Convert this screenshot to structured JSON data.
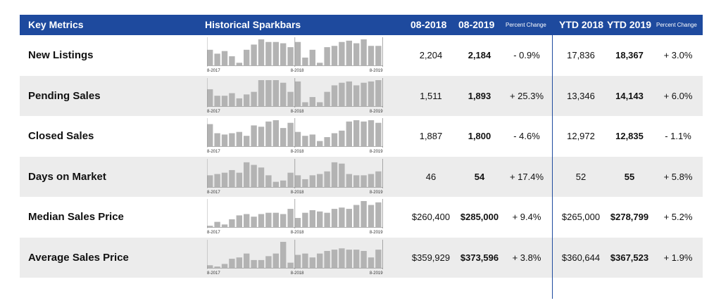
{
  "header": {
    "key_metrics": "Key Metrics",
    "sparkbars": "Historical Sparkbars",
    "col_0818": "08-2018",
    "col_0819": "08-2019",
    "pct_change": "Percent Change",
    "ytd_2018": "YTD 2018",
    "ytd_2019": "YTD 2019",
    "ytd_pct_change": "Percent Change"
  },
  "colors": {
    "header_bg": "#1e4a9e",
    "bar": "#b3b3b3",
    "row_alt": "#ececec"
  },
  "rows": [
    {
      "metric": "New Listings",
      "v2018": "2,204",
      "v2019": "2,184",
      "pct": "- 0.9%",
      "ytd2018": "17,836",
      "ytd2019": "18,367",
      "ytdpct": "+ 3.0%"
    },
    {
      "metric": "Pending Sales",
      "v2018": "1,511",
      "v2019": "1,893",
      "pct": "+ 25.3%",
      "ytd2018": "13,346",
      "ytd2019": "14,143",
      "ytdpct": "+ 6.0%"
    },
    {
      "metric": "Closed Sales",
      "v2018": "1,887",
      "v2019": "1,800",
      "pct": "- 4.6%",
      "ytd2018": "12,972",
      "ytd2019": "12,835",
      "ytdpct": "- 1.1%"
    },
    {
      "metric": "Days on Market",
      "v2018": "46",
      "v2019": "54",
      "pct": "+ 17.4%",
      "ytd2018": "52",
      "ytd2019": "55",
      "ytdpct": "+ 5.8%"
    },
    {
      "metric": "Median Sales Price",
      "v2018": "$260,400",
      "v2019": "$285,000",
      "pct": "+ 9.4%",
      "ytd2018": "$265,000",
      "ytd2019": "$278,799",
      "ytdpct": "+ 5.2%"
    },
    {
      "metric": "Average Sales Price",
      "v2018": "$359,929",
      "v2019": "$373,596",
      "pct": "+ 3.8%",
      "ytd2018": "$360,644",
      "ytd2019": "$367,523",
      "ytdpct": "+ 1.9%"
    }
  ],
  "chart_data": {
    "type": "bar",
    "tick_labels": [
      "8-2017",
      "8-2018",
      "8-2019"
    ],
    "series": [
      {
        "values": [
          0.6,
          0.45,
          0.55,
          0.35,
          0.1,
          0.6,
          0.8,
          1.0,
          0.9,
          0.9,
          0.85,
          0.7,
          0.9,
          0.3,
          0.6,
          0.1,
          0.7,
          0.75,
          0.9,
          0.95,
          0.85,
          1.0,
          0.75,
          0.75
        ]
      },
      {
        "values": [
          0.65,
          0.4,
          0.4,
          0.5,
          0.3,
          0.45,
          0.55,
          1.0,
          1.0,
          1.0,
          0.9,
          0.55,
          0.95,
          0.15,
          0.35,
          0.15,
          0.55,
          0.8,
          0.9,
          0.95,
          0.8,
          0.9,
          0.95,
          1.0
        ]
      },
      {
        "values": [
          0.85,
          0.5,
          0.45,
          0.5,
          0.55,
          0.4,
          0.8,
          0.75,
          0.95,
          1.0,
          0.7,
          0.9,
          0.55,
          0.4,
          0.45,
          0.2,
          0.35,
          0.5,
          0.6,
          0.95,
          1.0,
          0.95,
          1.0,
          0.9
        ]
      },
      {
        "values": [
          0.45,
          0.5,
          0.55,
          0.65,
          0.55,
          0.95,
          0.85,
          0.75,
          0.45,
          0.2,
          0.25,
          0.55,
          0.45,
          0.3,
          0.45,
          0.5,
          0.6,
          0.95,
          0.9,
          0.5,
          0.45,
          0.45,
          0.5,
          0.6
        ]
      },
      {
        "values": [
          0.05,
          0.2,
          0.1,
          0.3,
          0.45,
          0.5,
          0.4,
          0.5,
          0.55,
          0.55,
          0.5,
          0.7,
          0.35,
          0.55,
          0.65,
          0.6,
          0.55,
          0.7,
          0.75,
          0.7,
          0.85,
          1.0,
          0.85,
          0.95
        ]
      },
      {
        "values": [
          0.1,
          0.05,
          0.15,
          0.35,
          0.4,
          0.55,
          0.3,
          0.3,
          0.45,
          0.55,
          1.0,
          0.2,
          0.5,
          0.55,
          0.4,
          0.55,
          0.65,
          0.7,
          0.75,
          0.7,
          0.7,
          0.65,
          0.4,
          0.7
        ]
      }
    ]
  }
}
